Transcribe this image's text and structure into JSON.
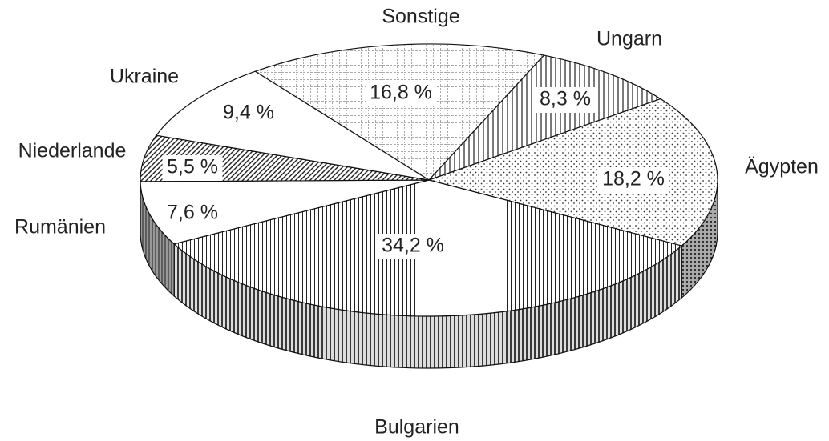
{
  "chart_data": {
    "type": "pie",
    "categories": [
      "Sonstige",
      "Ungarn",
      "Ägypten",
      "Bulgarien",
      "Rumänien",
      "Niederlande",
      "Ukraine"
    ],
    "values": [
      16.8,
      8.3,
      18.2,
      34.2,
      7.6,
      5.5,
      9.4
    ],
    "value_labels": [
      "16,8 %",
      "8,3 %",
      "18,2 %",
      "34,2 %",
      "7,6 %",
      "5,5 %",
      "9,4 %"
    ]
  }
}
